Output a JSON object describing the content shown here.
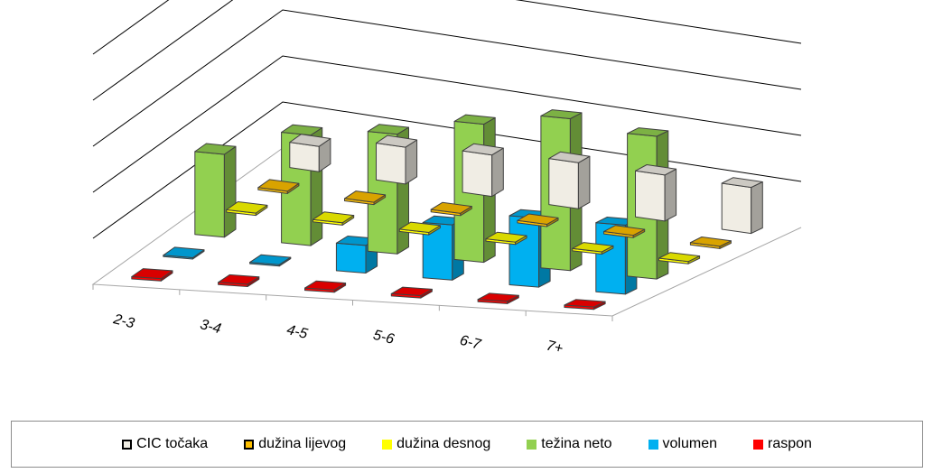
{
  "chart_data": {
    "type": "bar",
    "subtype": "3d-clustered-column",
    "title": "",
    "xlabel": "",
    "ylabel": "",
    "categories": [
      "2-3",
      "3-4",
      "4-5",
      "5-6",
      "6-7",
      "7+"
    ],
    "ylim": [
      0,
      5
    ],
    "grid": true,
    "legend_position": "bottom",
    "series": [
      {
        "name": "CIC točaka",
        "color": "#f0ede4",
        "values": [
          0.55,
          0.8,
          0.9,
          1.0,
          1.0,
          1.0
        ]
      },
      {
        "name": "dužina lijevog",
        "color": "#ffc000",
        "values": [
          0.05,
          0.05,
          0.05,
          0.05,
          0.05,
          0.05
        ]
      },
      {
        "name": "dužina desnog",
        "color": "#ffff00",
        "values": [
          0.05,
          0.05,
          0.05,
          0.05,
          0.05,
          0.05
        ]
      },
      {
        "name": "težina neto",
        "color": "#92d050",
        "values": [
          1.8,
          2.4,
          2.6,
          3.0,
          3.3,
          3.1
        ]
      },
      {
        "name": "volumen",
        "color": "#00b0f0",
        "values": [
          0.03,
          0.03,
          0.6,
          1.2,
          1.5,
          1.5
        ]
      },
      {
        "name": "raspon",
        "color": "#ff0000",
        "values": [
          0.05,
          0.05,
          0.05,
          0.05,
          0.05,
          0.05
        ]
      }
    ]
  }
}
